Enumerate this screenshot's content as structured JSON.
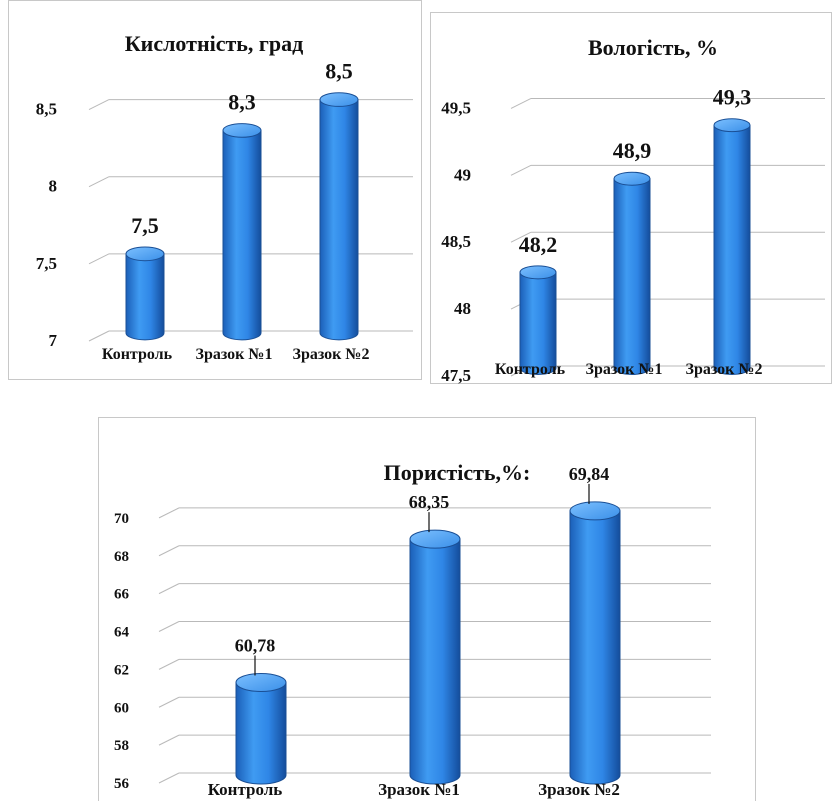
{
  "chart_data": [
    {
      "type": "bar",
      "title": "Кислотність, град",
      "categories": [
        "Контроль",
        "Зразок №1",
        "Зразок №2"
      ],
      "values": [
        7.5,
        8.3,
        8.5
      ],
      "data_labels": [
        "7,5",
        "8,3",
        "8,5"
      ],
      "y_ticks": [
        "7",
        "7,5",
        "8",
        "8,5"
      ],
      "ylim": [
        7,
        8.75
      ],
      "grid": true,
      "bar_color": "#2f86e6"
    },
    {
      "type": "bar",
      "title": "Вологість, %",
      "categories": [
        "Контроль",
        "Зразок №1",
        "Зразок №2"
      ],
      "values": [
        48.2,
        48.9,
        49.3
      ],
      "data_labels": [
        "48,2",
        "48,9",
        "49,3"
      ],
      "y_ticks": [
        "47,5",
        "48",
        "48,5",
        "49",
        "49,5"
      ],
      "ylim": [
        47.5,
        49.75
      ],
      "grid": true,
      "bar_color": "#2f86e6"
    },
    {
      "type": "bar",
      "title": "Пористість,%:",
      "categories": [
        "Контроль",
        "Зразок №1",
        "Зразок №2"
      ],
      "values": [
        60.78,
        68.35,
        69.84
      ],
      "data_labels": [
        "60,78",
        "68,35",
        "69,84"
      ],
      "y_ticks": [
        "56",
        "58",
        "60",
        "62",
        "64",
        "66",
        "68",
        "70"
      ],
      "ylim": [
        56,
        72
      ],
      "grid": true,
      "bar_color": "#2f86e6"
    }
  ]
}
